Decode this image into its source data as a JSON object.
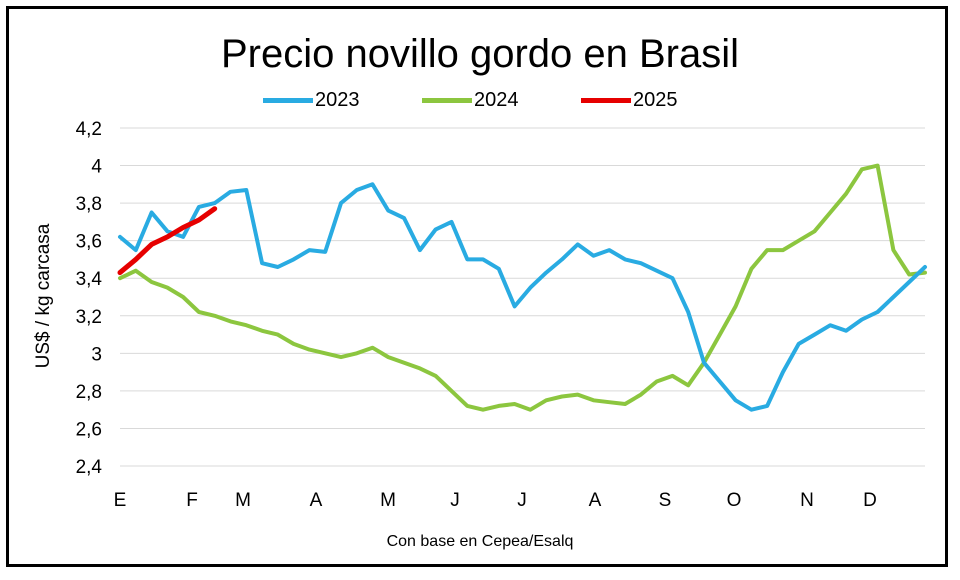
{
  "chart_data": {
    "type": "line",
    "title": "Precio novillo gordo en Brasil",
    "source_note": "Con base en Cepea/Esalq",
    "ylabel": "US$ / kg carcasa",
    "xlabel": "",
    "ylim": [
      2.4,
      4.2
    ],
    "y_ticks": [
      "4,2",
      "4",
      "3,8",
      "3,6",
      "3,4",
      "3,2",
      "3",
      "2,8",
      "2,6",
      "2,4"
    ],
    "x_ticks": [
      "E",
      "F",
      "M",
      "A",
      "M",
      "J",
      "J",
      "A",
      "S",
      "O",
      "N",
      "D"
    ],
    "grid": "horizontal",
    "legend_position": "top-center",
    "x_unit": "week of year (0 = start of January)",
    "series": [
      {
        "name": "2023",
        "color": "#29abe2",
        "x": [
          0,
          1,
          2,
          3,
          4,
          5,
          6,
          7,
          8,
          9,
          10,
          11,
          12,
          13,
          14,
          15,
          16,
          17,
          18,
          19,
          20,
          21,
          22,
          23,
          24,
          25,
          26,
          27,
          28,
          29,
          30,
          31,
          32,
          33,
          34,
          35,
          36,
          37,
          38,
          39,
          40,
          41,
          42,
          43,
          44,
          45,
          46,
          47,
          48,
          49,
          50,
          51
        ],
        "values": [
          3.62,
          3.55,
          3.75,
          3.65,
          3.62,
          3.78,
          3.8,
          3.86,
          3.87,
          3.48,
          3.46,
          3.5,
          3.55,
          3.54,
          3.8,
          3.87,
          3.9,
          3.76,
          3.72,
          3.55,
          3.66,
          3.7,
          3.5,
          3.5,
          3.45,
          3.25,
          3.35,
          3.43,
          3.5,
          3.58,
          3.52,
          3.55,
          3.5,
          3.48,
          3.44,
          3.4,
          3.22,
          2.95,
          2.85,
          2.75,
          2.7,
          2.72,
          2.9,
          3.05,
          3.1,
          3.15,
          3.12,
          3.18,
          3.22,
          3.3,
          3.38,
          3.46
        ]
      },
      {
        "name": "2024",
        "color": "#8cc63f",
        "x": [
          0,
          1,
          2,
          3,
          4,
          5,
          6,
          7,
          8,
          9,
          10,
          11,
          12,
          13,
          14,
          15,
          16,
          17,
          18,
          19,
          20,
          21,
          22,
          23,
          24,
          25,
          26,
          27,
          28,
          29,
          30,
          31,
          32,
          33,
          34,
          35,
          36,
          37,
          38,
          39,
          40,
          41,
          42,
          43,
          44,
          45,
          46,
          47,
          48,
          49,
          50,
          51
        ],
        "values": [
          3.4,
          3.44,
          3.38,
          3.35,
          3.3,
          3.22,
          3.2,
          3.17,
          3.15,
          3.12,
          3.1,
          3.05,
          3.02,
          3.0,
          2.98,
          3.0,
          3.03,
          2.98,
          2.95,
          2.92,
          2.88,
          2.8,
          2.72,
          2.7,
          2.72,
          2.73,
          2.7,
          2.75,
          2.77,
          2.78,
          2.75,
          2.74,
          2.73,
          2.78,
          2.85,
          2.88,
          2.83,
          2.95,
          3.1,
          3.25,
          3.45,
          3.55,
          3.55,
          3.6,
          3.65,
          3.75,
          3.85,
          3.98,
          4.0,
          3.55,
          3.42,
          3.43
        ]
      },
      {
        "name": "2025",
        "color": "#e60000",
        "x": [
          0,
          1,
          2,
          3,
          4,
          5,
          6
        ],
        "values": [
          3.43,
          3.5,
          3.58,
          3.62,
          3.67,
          3.71,
          3.77
        ]
      }
    ]
  }
}
